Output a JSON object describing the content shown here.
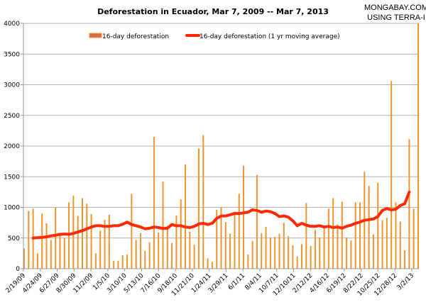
{
  "chart_data": {
    "type": "bar",
    "title": "Deforestation in Ecuador, Mar 7, 2009 -- Mar 7, 2013",
    "credit": [
      "MONGABAY.COM",
      "USING TERRA-I"
    ],
    "xlabel": "",
    "ylabel": "",
    "ylim": [
      0,
      4000
    ],
    "yticks": [
      0,
      500,
      1000,
      1500,
      2000,
      2500,
      3000,
      3500,
      4000
    ],
    "grid": true,
    "legend_placement": "top",
    "xtick_labels": [
      "2/19/09",
      "4/24/09",
      "6/27/09",
      "8/30/09",
      "11/2/09",
      "1/5/10",
      "3/10/10",
      "5/13/10",
      "7/16/10",
      "9/18/10",
      "11/21/10",
      "1/24/11",
      "3/29/11",
      "6/1/11",
      "8/4/11",
      "10/7/11",
      "12/10/11",
      "2/12/12",
      "4/16/12",
      "6/19/12",
      "8/22/12",
      "10/25/12",
      "12/28/12",
      "3/2/13"
    ],
    "colors": {
      "bars": "#f0952e",
      "line": "#ff2a00",
      "grid": "#b3b3b3",
      "axis": "#999999"
    },
    "series": [
      {
        "name": "16-day deforestation",
        "type": "bar",
        "values": [
          330,
          940,
          980,
          250,
          900,
          740,
          470,
          1000,
          540,
          500,
          1080,
          1190,
          860,
          1150,
          1060,
          890,
          250,
          620,
          800,
          880,
          130,
          130,
          220,
          230,
          1220,
          470,
          580,
          290,
          430,
          2150,
          590,
          1420,
          700,
          420,
          870,
          1130,
          1700,
          600,
          390,
          1960,
          2180,
          170,
          110,
          960,
          1000,
          760,
          570,
          930,
          1220,
          1680,
          230,
          450,
          1530,
          580,
          680,
          510,
          520,
          570,
          750,
          530,
          380,
          200,
          400,
          1070,
          370,
          630,
          510,
          700,
          980,
          1150,
          720,
          1090,
          510,
          460,
          1080,
          1080,
          1580,
          1350,
          560,
          1400,
          790,
          830,
          3060,
          1080,
          770,
          300,
          2110,
          980,
          4000
        ]
      },
      {
        "name": "16-day deforestation (1 yr moving average)",
        "type": "line",
        "start_index": 2,
        "values": [
          500,
          505,
          510,
          520,
          535,
          545,
          560,
          565,
          560,
          575,
          600,
          620,
          650,
          680,
          700,
          700,
          690,
          690,
          700,
          700,
          725,
          760,
          720,
          700,
          680,
          650,
          660,
          680,
          670,
          655,
          660,
          720,
          700,
          700,
          680,
          670,
          690,
          730,
          740,
          720,
          740,
          820,
          860,
          860,
          880,
          900,
          900,
          910,
          920,
          960,
          950,
          920,
          940,
          930,
          900,
          850,
          860,
          840,
          780,
          700,
          740,
          710,
          690,
          690,
          700,
          680,
          690,
          670,
          680,
          660,
          690,
          710,
          740,
          760,
          790,
          800,
          810,
          850,
          950,
          980,
          960,
          970,
          1030,
          1060,
          1250
        ]
      }
    ]
  }
}
